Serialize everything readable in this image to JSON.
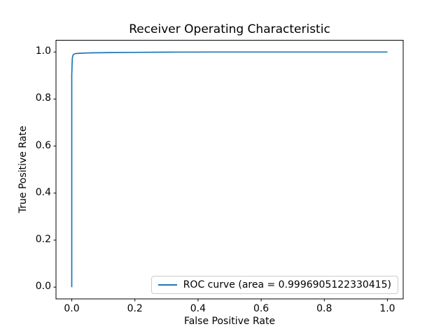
{
  "figure": {
    "background": "#ffffff",
    "text_color": "#000000"
  },
  "chart_data": {
    "type": "line",
    "title": "Receiver Operating Characteristic",
    "xlabel": "False Positive Rate",
    "ylabel": "True Positive Rate",
    "xlim": [
      -0.05,
      1.05
    ],
    "ylim": [
      -0.05,
      1.05
    ],
    "x_ticks": [
      0.0,
      0.2,
      0.4,
      0.6,
      0.8,
      1.0
    ],
    "y_ticks": [
      0.0,
      0.2,
      0.4,
      0.6,
      0.8,
      1.0
    ],
    "x_tick_labels": [
      "0.0",
      "0.2",
      "0.4",
      "0.6",
      "0.8",
      "1.0"
    ],
    "y_tick_labels": [
      "0.0",
      "0.2",
      "0.4",
      "0.6",
      "0.8",
      "1.0"
    ],
    "grid": false,
    "legend": {
      "position": "lower right",
      "entries": [
        "ROC curve (area = 0.9996905122330415)"
      ]
    },
    "series": [
      {
        "name": "ROC curve (area = 0.9996905122330415)",
        "color": "#1f77b4",
        "auc": 0.9996905122330415,
        "points": [
          [
            0.0,
            0.0
          ],
          [
            0.0,
            0.9
          ],
          [
            0.001,
            0.95
          ],
          [
            0.002,
            0.975
          ],
          [
            0.004,
            0.987
          ],
          [
            0.007,
            0.991
          ],
          [
            0.012,
            0.9935
          ],
          [
            0.03,
            0.995
          ],
          [
            0.06,
            0.9965
          ],
          [
            0.12,
            0.9975
          ],
          [
            0.2,
            0.9985
          ],
          [
            0.3,
            0.9993
          ],
          [
            0.45,
            1.0
          ],
          [
            1.0,
            1.0
          ]
        ]
      }
    ]
  }
}
